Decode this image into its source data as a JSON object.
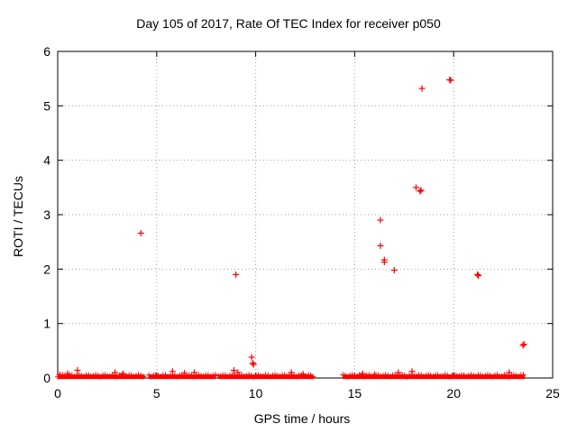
{
  "chart_data": {
    "type": "scatter",
    "title": "Day 105 of 2017, Rate Of TEC Index for receiver p050",
    "xlabel": "GPS time / hours",
    "ylabel": "ROTI / TECUs",
    "xlim": [
      0,
      25
    ],
    "ylim": [
      0,
      6
    ],
    "xticks": [
      "0",
      "5",
      "10",
      "15",
      "20",
      "25"
    ],
    "yticks": [
      "0",
      "1",
      "2",
      "3",
      "4",
      "5",
      "6"
    ],
    "grid": true,
    "marker": "+",
    "color": "#ff0000",
    "baseline_segments": [
      [
        0.0,
        4.4
      ],
      [
        4.6,
        8.0
      ],
      [
        8.1,
        12.9
      ],
      [
        14.4,
        23.6
      ]
    ],
    "series": [
      {
        "name": "p050",
        "points": [
          [
            0.1,
            0.06
          ],
          [
            0.5,
            0.08
          ],
          [
            1.0,
            0.14
          ],
          [
            2.9,
            0.1
          ],
          [
            3.3,
            0.08
          ],
          [
            4.2,
            2.66
          ],
          [
            5.8,
            0.12
          ],
          [
            6.4,
            0.09
          ],
          [
            6.9,
            0.1
          ],
          [
            8.9,
            0.14
          ],
          [
            9.1,
            0.1
          ],
          [
            9.0,
            1.9
          ],
          [
            9.8,
            0.38
          ],
          [
            9.85,
            0.27
          ],
          [
            9.9,
            0.25
          ],
          [
            11.8,
            0.1
          ],
          [
            12.4,
            0.07
          ],
          [
            15.4,
            0.08
          ],
          [
            16.0,
            0.06
          ],
          [
            16.3,
            2.9
          ],
          [
            16.3,
            2.43
          ],
          [
            16.5,
            2.17
          ],
          [
            16.5,
            2.13
          ],
          [
            17.0,
            1.98
          ],
          [
            17.2,
            0.1
          ],
          [
            17.9,
            0.12
          ],
          [
            18.1,
            3.5
          ],
          [
            18.3,
            3.43
          ],
          [
            18.35,
            3.45
          ],
          [
            18.4,
            5.32
          ],
          [
            19.8,
            5.48
          ],
          [
            19.85,
            5.47
          ],
          [
            21.2,
            1.9
          ],
          [
            21.25,
            1.88
          ],
          [
            22.8,
            0.1
          ],
          [
            23.5,
            0.6
          ],
          [
            23.55,
            0.62
          ]
        ]
      }
    ]
  }
}
